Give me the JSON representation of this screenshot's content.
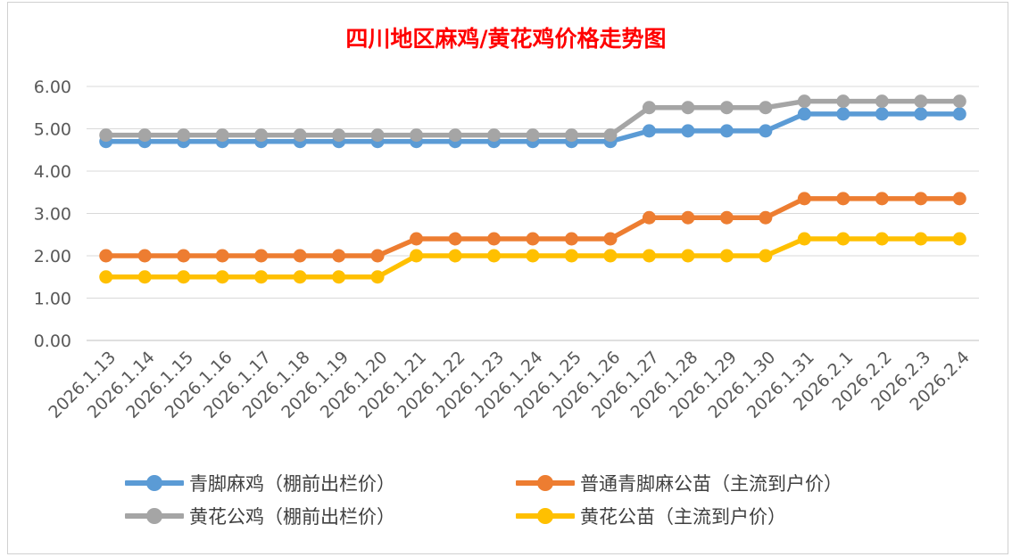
{
  "chart_data": {
    "type": "line",
    "title": "四川地区麻鸡/黄花鸡价格走势图",
    "categories": [
      "2026.1.13",
      "2026.1.14",
      "2026.1.15",
      "2026.1.16",
      "2026.1.17",
      "2026.1.18",
      "2026.1.19",
      "2026.1.20",
      "2026.1.21",
      "2026.1.22",
      "2026.1.23",
      "2026.1.24",
      "2026.1.25",
      "2026.1.26",
      "2026.1.27",
      "2026.1.28",
      "2026.1.29",
      "2026.1.30",
      "2026.1.31",
      "2026.2.1",
      "2026.2.2",
      "2026.2.3",
      "2026.2.4"
    ],
    "yticks": [
      "0.00",
      "1.00",
      "2.00",
      "3.00",
      "4.00",
      "5.00",
      "6.00"
    ],
    "ylim": [
      0,
      6
    ],
    "grid": true,
    "legend_position": "bottom",
    "series": [
      {
        "name": "青脚麻鸡（棚前出栏价）",
        "color": "#5b9bd5",
        "values": [
          4.7,
          4.7,
          4.7,
          4.7,
          4.7,
          4.7,
          4.7,
          4.7,
          4.7,
          4.7,
          4.7,
          4.7,
          4.7,
          4.7,
          4.95,
          4.95,
          4.95,
          4.95,
          5.35,
          5.35,
          5.35,
          5.35,
          5.35
        ]
      },
      {
        "name": "普通青脚麻公苗（主流到户价）",
        "color": "#ed7d31",
        "values": [
          2.0,
          2.0,
          2.0,
          2.0,
          2.0,
          2.0,
          2.0,
          2.0,
          2.4,
          2.4,
          2.4,
          2.4,
          2.4,
          2.4,
          2.9,
          2.9,
          2.9,
          2.9,
          3.35,
          3.35,
          3.35,
          3.35,
          3.35
        ]
      },
      {
        "name": "黄花公鸡（棚前出栏价）",
        "color": "#a5a5a5",
        "values": [
          4.85,
          4.85,
          4.85,
          4.85,
          4.85,
          4.85,
          4.85,
          4.85,
          4.85,
          4.85,
          4.85,
          4.85,
          4.85,
          4.85,
          5.5,
          5.5,
          5.5,
          5.5,
          5.65,
          5.65,
          5.65,
          5.65,
          5.65
        ]
      },
      {
        "name": "黄花公苗（主流到户价）",
        "color": "#ffc000",
        "values": [
          1.5,
          1.5,
          1.5,
          1.5,
          1.5,
          1.5,
          1.5,
          1.5,
          2.0,
          2.0,
          2.0,
          2.0,
          2.0,
          2.0,
          2.0,
          2.0,
          2.0,
          2.0,
          2.4,
          2.4,
          2.4,
          2.4,
          2.4
        ]
      }
    ]
  }
}
